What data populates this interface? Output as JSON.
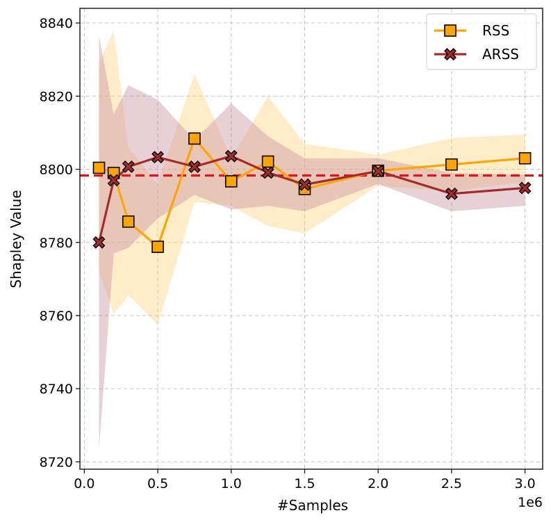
{
  "chart_data": {
    "type": "line",
    "xlabel": "#Samples",
    "ylabel": "Shapley Value",
    "x_offset_label": "1e6",
    "xlim": [
      -0.03,
      3.12
    ],
    "ylim": [
      8718,
      8844
    ],
    "xticks": [
      0.0,
      0.5,
      1.0,
      1.5,
      2.0,
      2.5,
      3.0
    ],
    "xtick_labels": [
      "0.0",
      "0.5",
      "1.0",
      "1.5",
      "2.0",
      "2.5",
      "3.0"
    ],
    "yticks": [
      8720,
      8740,
      8760,
      8780,
      8800,
      8820,
      8840
    ],
    "ytick_labels": [
      "8720",
      "8740",
      "8760",
      "8780",
      "8800",
      "8820",
      "8840"
    ],
    "grid": true,
    "legend_position": "top-right",
    "reference_line": {
      "value": 8798.3,
      "color": "#e8111a",
      "style": "dashed"
    },
    "x": [
      0.1,
      0.2,
      0.3,
      0.5,
      0.75,
      1.0,
      1.25,
      1.5,
      2.0,
      2.5,
      3.0
    ],
    "series": [
      {
        "name": "RSS",
        "marker": "square",
        "color": "#ffa500",
        "band_color": "#ffd27a",
        "values": [
          8800.4,
          8799.0,
          8785.7,
          8778.8,
          8808.4,
          8796.7,
          8802.1,
          8794.6,
          8799.6,
          8801.3,
          8803.0
        ],
        "upper": [
          8829.0,
          8838.0,
          8806.0,
          8796.0,
          8826.0,
          8803.0,
          8820.0,
          8807.0,
          8804.0,
          8808.5,
          8809.5
        ],
        "lower": [
          8772.0,
          8760.5,
          8765.5,
          8757.5,
          8791.0,
          8790.0,
          8784.5,
          8782.5,
          8795.5,
          8794.0,
          8796.5
        ]
      },
      {
        "name": "ARSS",
        "marker": "x",
        "color": "#a52a2a",
        "band_color": "#c48c9c",
        "values": [
          8780.0,
          8797.0,
          8800.7,
          8803.3,
          8800.7,
          8803.6,
          8799.1,
          8795.8,
          8799.5,
          8793.3,
          8794.9
        ],
        "upper": [
          8836.5,
          8815.0,
          8823.0,
          8819.0,
          8808.0,
          8818.0,
          8809.0,
          8803.0,
          8803.0,
          8799.0,
          8798.5
        ],
        "lower": [
          8723.5,
          8777.0,
          8778.5,
          8786.5,
          8793.0,
          8789.0,
          8790.0,
          8788.5,
          8796.0,
          8788.5,
          8790.0
        ]
      }
    ]
  }
}
